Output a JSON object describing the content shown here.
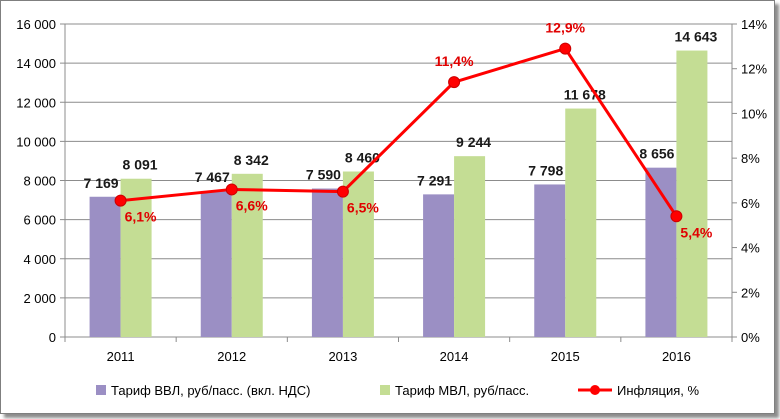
{
  "chart_data": {
    "type": "bar",
    "categories": [
      "2011",
      "2012",
      "2013",
      "2014",
      "2015",
      "2016"
    ],
    "series": [
      {
        "name": "Тариф ВВЛ, руб/пасс. (вкл. НДС)",
        "kind": "bar",
        "axis": "left",
        "color": "#9b8fc4",
        "values": [
          7169,
          7467,
          7590,
          7291,
          7798,
          8656
        ],
        "labels": [
          "7 169",
          "7 467",
          "7 590",
          "7 291",
          "7 798",
          "8 656"
        ]
      },
      {
        "name": "Тариф МВЛ, руб/пасс.",
        "kind": "bar",
        "axis": "left",
        "color": "#c4dd94",
        "values": [
          8091,
          8342,
          8460,
          9244,
          11678,
          14643
        ],
        "labels": [
          "8 091",
          "8 342",
          "8 460",
          "9 244",
          "11 678",
          "14 643"
        ]
      },
      {
        "name": "Инфляция, %",
        "kind": "line",
        "axis": "right",
        "color": "#ff0000",
        "values": [
          6.1,
          6.6,
          6.5,
          11.4,
          12.9,
          5.4
        ],
        "labels": [
          "6,1%",
          "6,6%",
          "6,5%",
          "11,4%",
          "12,9%",
          "5,4%"
        ]
      }
    ],
    "y_left": {
      "ylim": [
        0,
        16000
      ],
      "ticks": [
        0,
        2000,
        4000,
        6000,
        8000,
        10000,
        12000,
        14000,
        16000
      ],
      "tick_labels": [
        "0",
        "2 000",
        "4 000",
        "6 000",
        "8 000",
        "10 000",
        "12 000",
        "14 000",
        "16 000"
      ]
    },
    "y_right": {
      "ylim": [
        0,
        14
      ],
      "ticks": [
        0,
        2,
        4,
        6,
        8,
        10,
        12,
        14
      ],
      "tick_labels": [
        "0%",
        "2%",
        "4%",
        "6%",
        "8%",
        "10%",
        "12%",
        "14%"
      ]
    },
    "grid": true,
    "legend_position": "bottom"
  }
}
